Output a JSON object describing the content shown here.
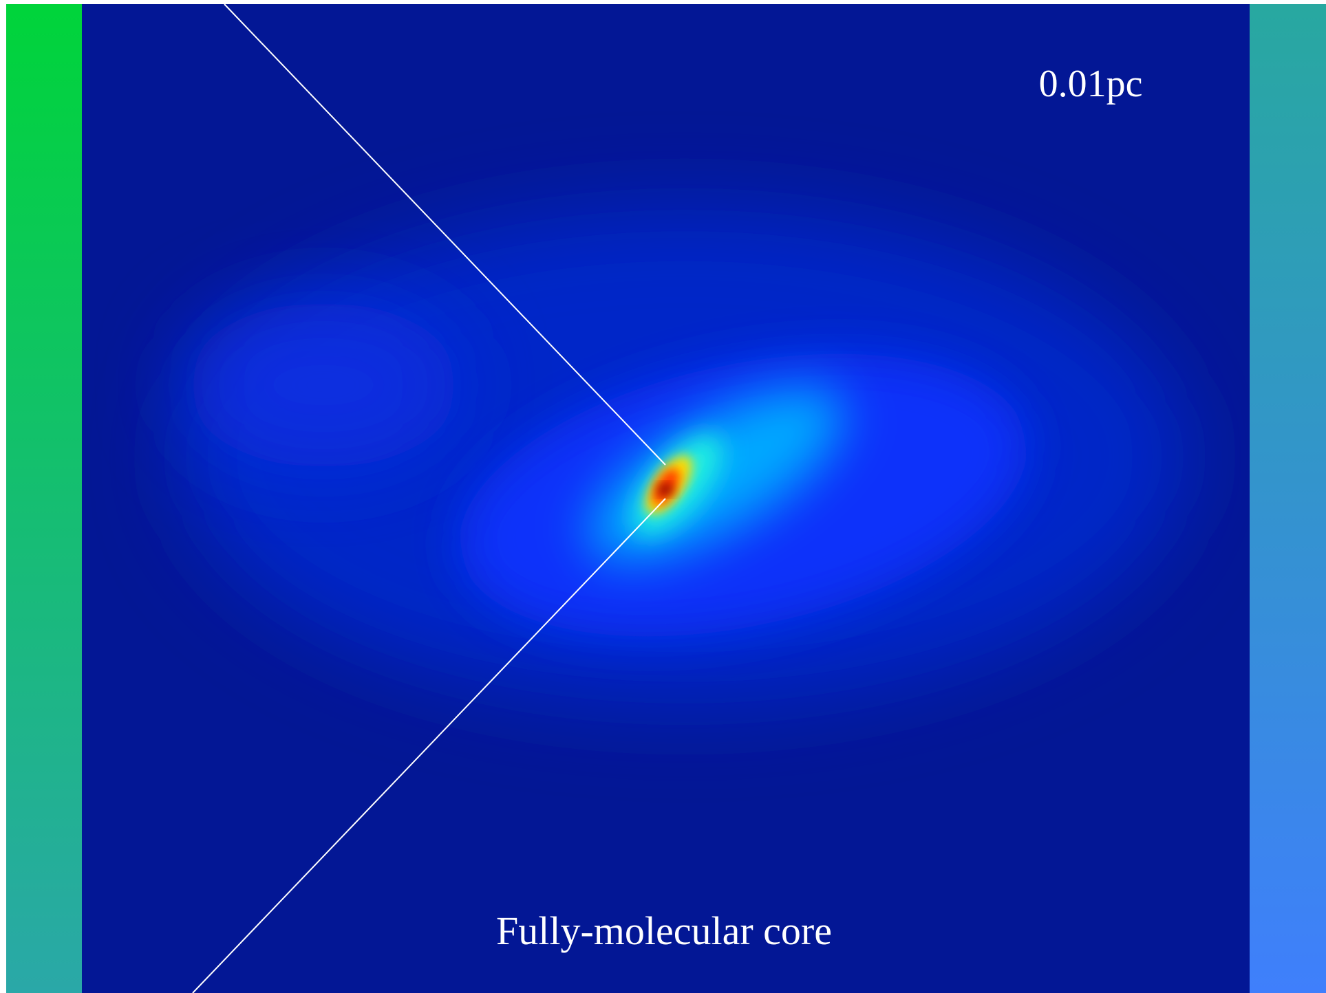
{
  "scale_label": "0.01pc",
  "caption": "Fully-molecular core"
}
